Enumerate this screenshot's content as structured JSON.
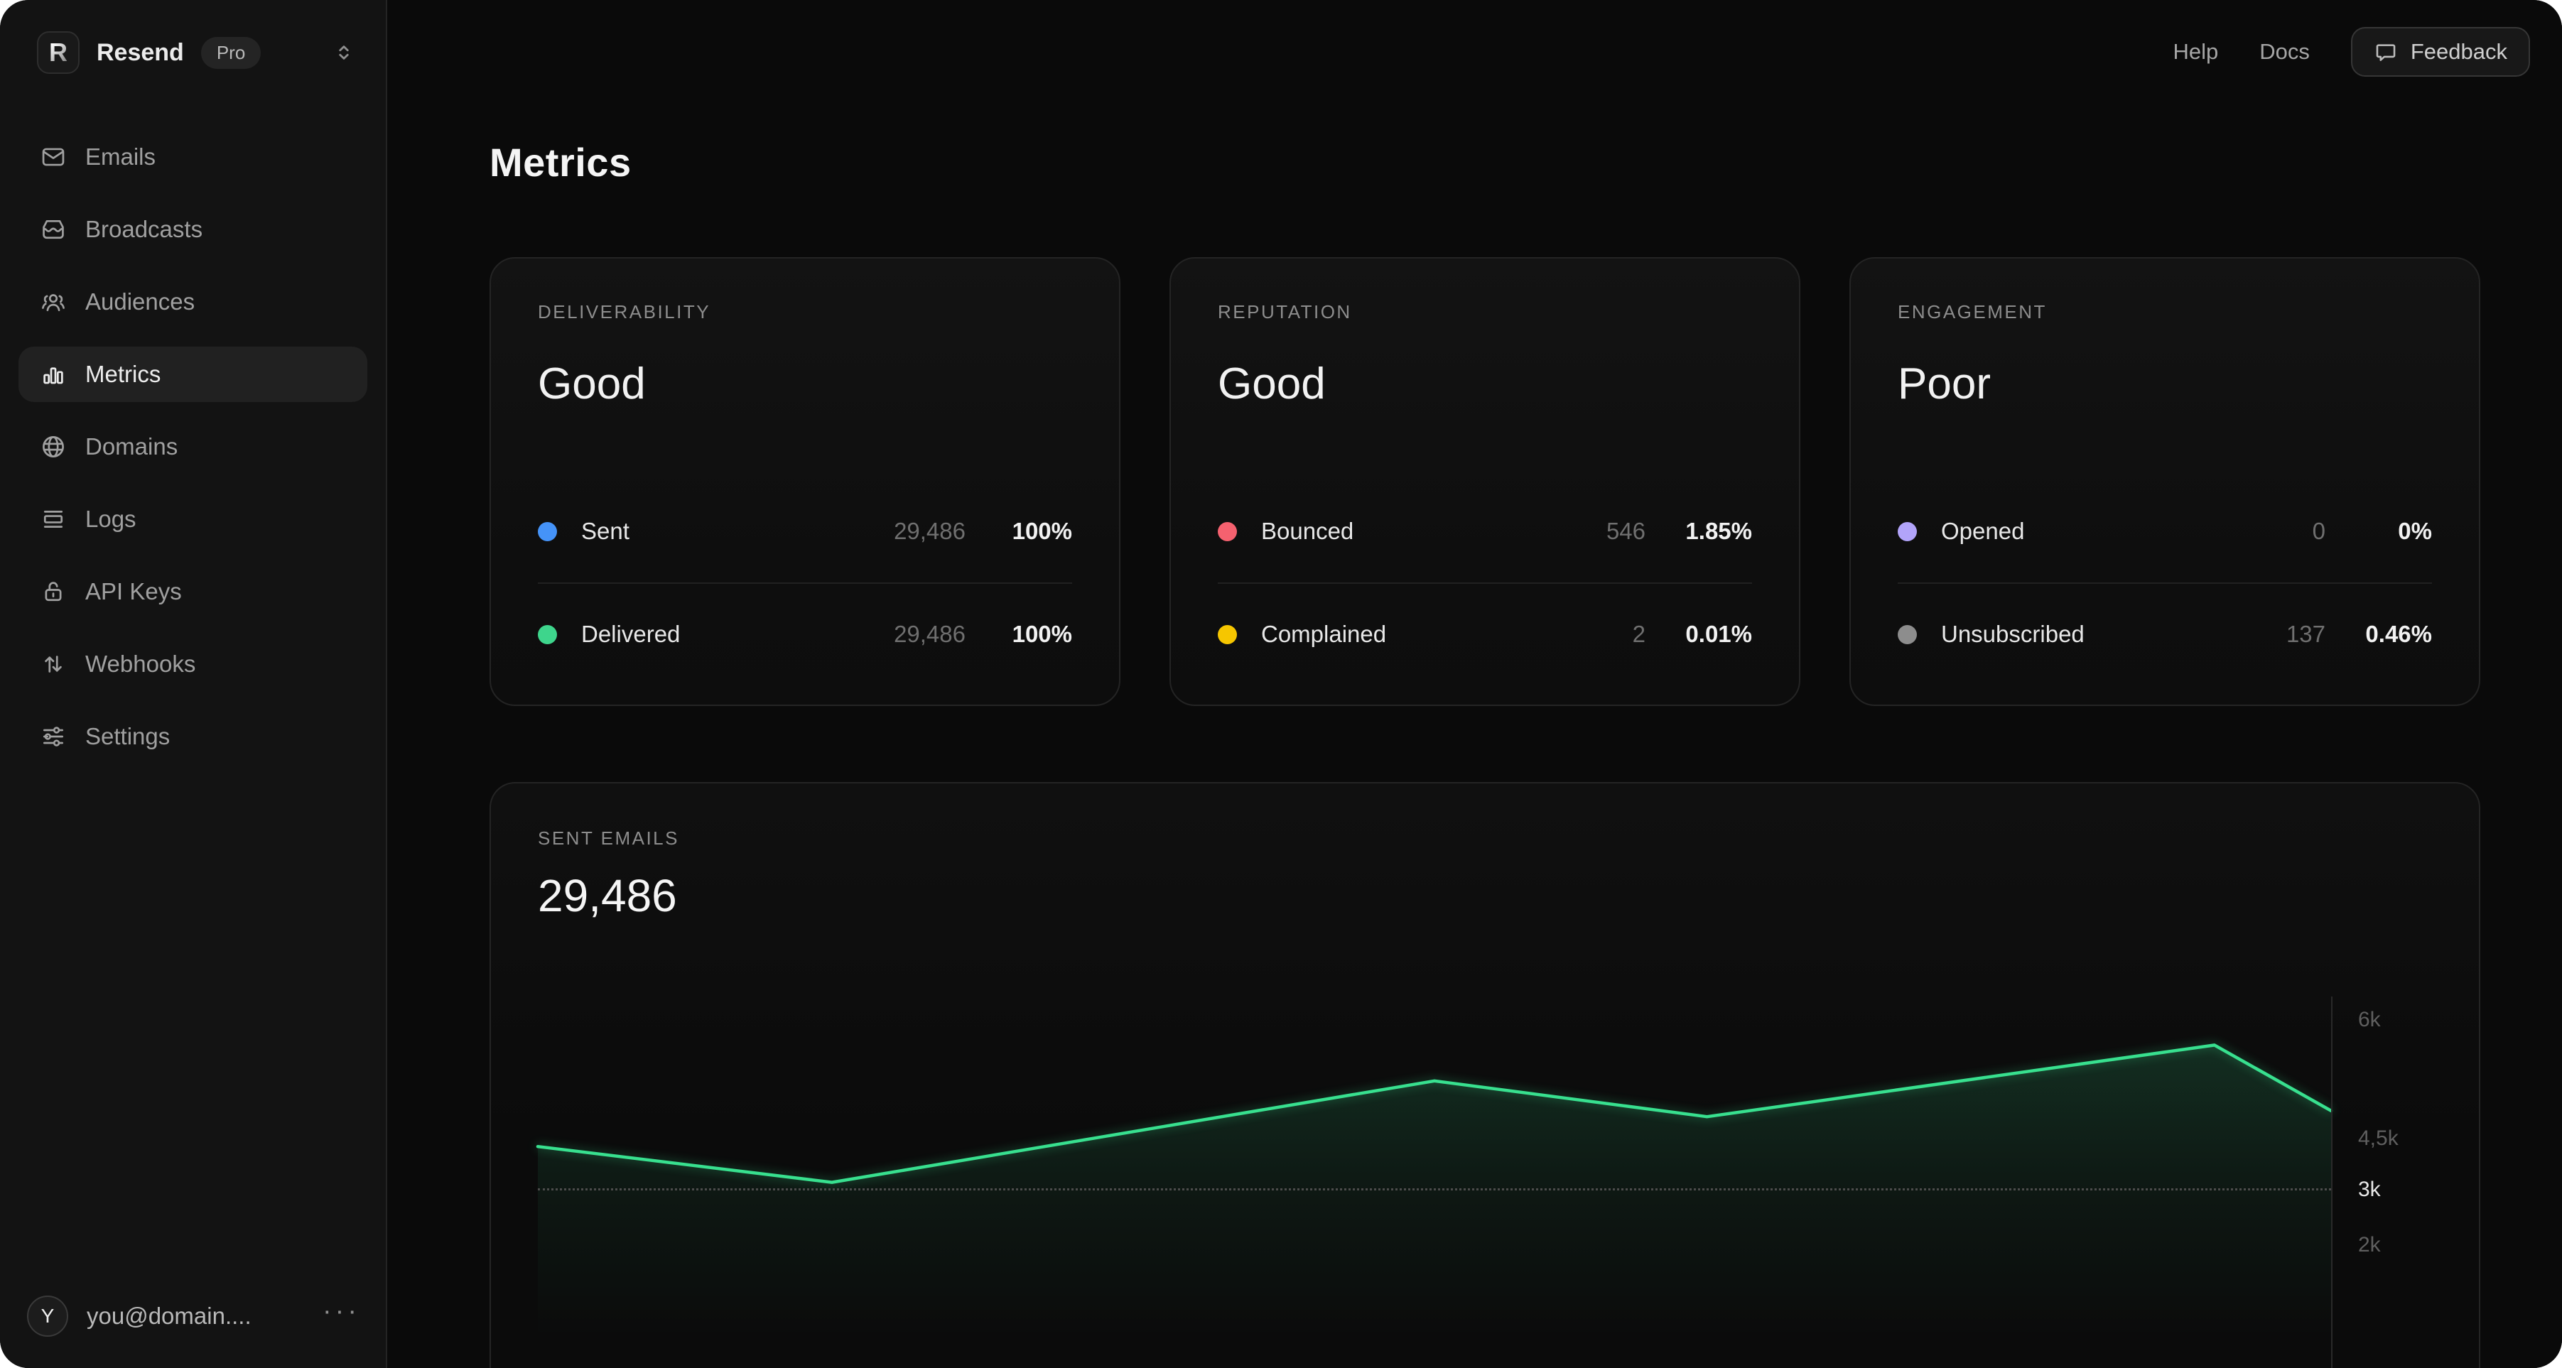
{
  "colors": {
    "accent_green": "#38e08f",
    "window_bg": "#0a0a0a",
    "sidebar_bg": "#131313",
    "dot_sent": "#4593f8",
    "dot_delivered": "#3ed58c",
    "dot_bounced": "#f5616f",
    "dot_complained": "#f6c600",
    "dot_opened": "#b2a4fa",
    "dot_unsubscribed": "#8d8d8d"
  },
  "sidebar": {
    "brand": {
      "logo_letter": "R",
      "name": "Resend",
      "plan_badge": "Pro"
    },
    "items": [
      {
        "icon": "mail-icon",
        "label": "Emails",
        "active": false
      },
      {
        "icon": "broadcast-icon",
        "label": "Broadcasts",
        "active": false
      },
      {
        "icon": "audiences-icon",
        "label": "Audiences",
        "active": false
      },
      {
        "icon": "metrics-icon",
        "label": "Metrics",
        "active": true
      },
      {
        "icon": "globe-icon",
        "label": "Domains",
        "active": false
      },
      {
        "icon": "logs-icon",
        "label": "Logs",
        "active": false
      },
      {
        "icon": "lock-icon",
        "label": "API Keys",
        "active": false
      },
      {
        "icon": "webhooks-icon",
        "label": "Webhooks",
        "active": false
      },
      {
        "icon": "settings-icon",
        "label": "Settings",
        "active": false
      }
    ],
    "user": {
      "avatar_initial": "Y",
      "email": "you@domain....",
      "menu": "···"
    }
  },
  "header": {
    "links": [
      {
        "label": "Help"
      },
      {
        "label": "Docs"
      }
    ],
    "feedback_button": {
      "label": "Feedback"
    }
  },
  "main": {
    "title": "Metrics",
    "summary_cards": [
      {
        "category": "DELIVERABILITY",
        "status": "Good",
        "rows": [
          {
            "label": "Sent",
            "dot_color": "#4593f8",
            "value": "29,486",
            "percent": "100%"
          },
          {
            "label": "Delivered",
            "dot_color": "#3ed58c",
            "value": "29,486",
            "percent": "100%"
          }
        ]
      },
      {
        "category": "REPUTATION",
        "status": "Good",
        "rows": [
          {
            "label": "Bounced",
            "dot_color": "#f5616f",
            "value": "546",
            "percent": "1.85%"
          },
          {
            "label": "Complained",
            "dot_color": "#f6c600",
            "value": "2",
            "percent": "0.01%"
          }
        ]
      },
      {
        "category": "ENGAGEMENT",
        "status": "Poor",
        "rows": [
          {
            "label": "Opened",
            "dot_color": "#b2a4fa",
            "value": "0",
            "percent": "0%"
          },
          {
            "label": "Unsubscribed",
            "dot_color": "#8d8d8d",
            "value": "137",
            "percent": "0.46%"
          }
        ]
      }
    ],
    "chart_card": {
      "category": "SENT EMAILS",
      "total": "29,486"
    }
  },
  "chart_data": {
    "type": "area",
    "title": "SENT EMAILS",
    "total": "29,486",
    "series": [
      {
        "name": "Sent",
        "points": [
          {
            "x_fraction": 0.0,
            "value": 3700
          },
          {
            "x_fraction": 0.164,
            "value": 3100
          },
          {
            "x_fraction": 0.5,
            "value": 4800
          },
          {
            "x_fraction": 0.652,
            "value": 4200
          },
          {
            "x_fraction": 0.935,
            "value": 5400
          },
          {
            "x_fraction": 1.0,
            "value": 4300
          }
        ]
      }
    ],
    "y_ticks": [
      {
        "label": "6k"
      },
      {
        "label": "4,5k"
      },
      {
        "label": "3k"
      },
      {
        "label": "2k"
      }
    ],
    "reference_line_value": "3k",
    "ylim_visible": [
      2000,
      6000
    ],
    "line_color": "#38e08f",
    "fill": "green-gradient-fade",
    "grid": "dashed-reference-only",
    "legend": "none",
    "xlabel": "",
    "ylabel": ""
  }
}
